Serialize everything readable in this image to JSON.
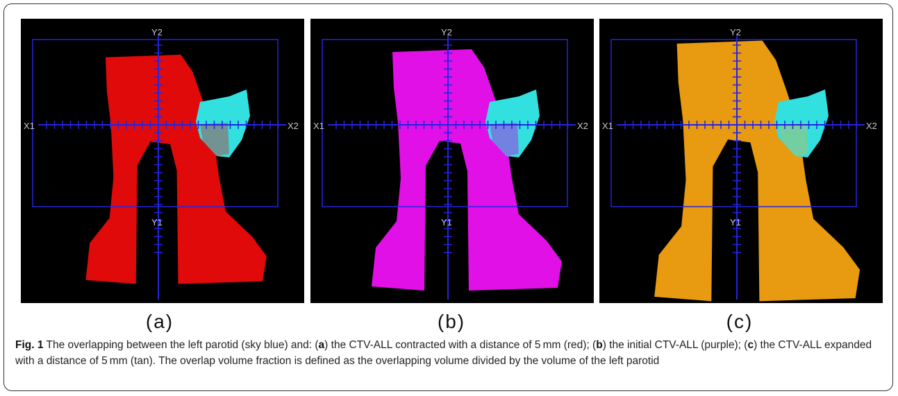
{
  "panels": [
    {
      "label": "(a)",
      "x1": "X1",
      "x2": "X2",
      "y1": "Y1",
      "y2": "Y2"
    },
    {
      "label": "(b)",
      "x1": "X1",
      "x2": "X2",
      "y1": "Y1",
      "y2": "Y2"
    },
    {
      "label": "(c)",
      "x1": "X1",
      "x2": "X2",
      "y1": "Y1",
      "y2": "Y2"
    }
  ],
  "caption": {
    "label": "Fig. 1",
    "parts": [
      " The overlapping between the left parotid (sky blue) and: (",
      "a",
      ") the CTV-ALL contracted with a distance of 5 mm (red); (",
      "b",
      ") the initial CTV-ALL (purple); (",
      "c",
      ") the CTV-ALL expanded with a distance of 5 mm (tan). The overlap volume fraction is defined as the overlapping volume divided by the volume of the left parotid"
    ]
  }
}
